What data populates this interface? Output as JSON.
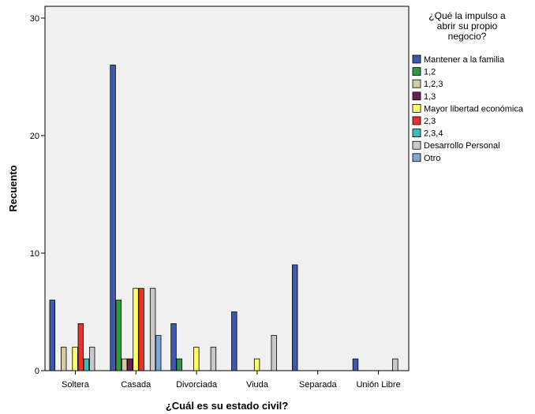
{
  "chart_data": {
    "type": "bar",
    "title": "",
    "xlabel": "¿Cuál es su estado civil?",
    "ylabel": "Recuento",
    "ylim": [
      0,
      31
    ],
    "yticks": [
      0,
      10,
      20,
      30
    ],
    "grid": false,
    "legend_position": "right",
    "legend_title_lines": [
      "¿Qué la impulso a",
      "abrir su propio",
      "negocio?"
    ],
    "categories": [
      "Soltera",
      "Casada",
      "Divorciada",
      "Viuda",
      "Separada",
      "Unión Libre"
    ],
    "series": [
      {
        "name": "Mantener a la familia",
        "color": "#3e58ac",
        "values": [
          6,
          26,
          4,
          5,
          9,
          1
        ]
      },
      {
        "name": "1,2",
        "color": "#2e9a3f",
        "values": [
          0,
          6,
          1,
          0,
          0,
          0
        ]
      },
      {
        "name": "1,2,3",
        "color": "#d4cba0",
        "values": [
          2,
          1,
          0,
          0,
          0,
          0
        ]
      },
      {
        "name": "1,3",
        "color": "#6a1f55",
        "values": [
          0,
          1,
          0,
          0,
          0,
          0
        ]
      },
      {
        "name": "Mayor libertad económica",
        "color": "#ffff66",
        "values": [
          2,
          7,
          2,
          1,
          0,
          0
        ]
      },
      {
        "name": "2,3",
        "color": "#e8322c",
        "values": [
          4,
          7,
          0,
          0,
          0,
          0
        ]
      },
      {
        "name": "2,3,4",
        "color": "#3cbcbc",
        "values": [
          1,
          0,
          0,
          0,
          0,
          0
        ]
      },
      {
        "name": "Desarrollo Personal",
        "color": "#c9c9c9",
        "values": [
          2,
          7,
          2,
          3,
          0,
          1
        ]
      },
      {
        "name": "Otro",
        "color": "#7ba6d6",
        "values": [
          0,
          3,
          0,
          0,
          0,
          0
        ]
      }
    ]
  }
}
